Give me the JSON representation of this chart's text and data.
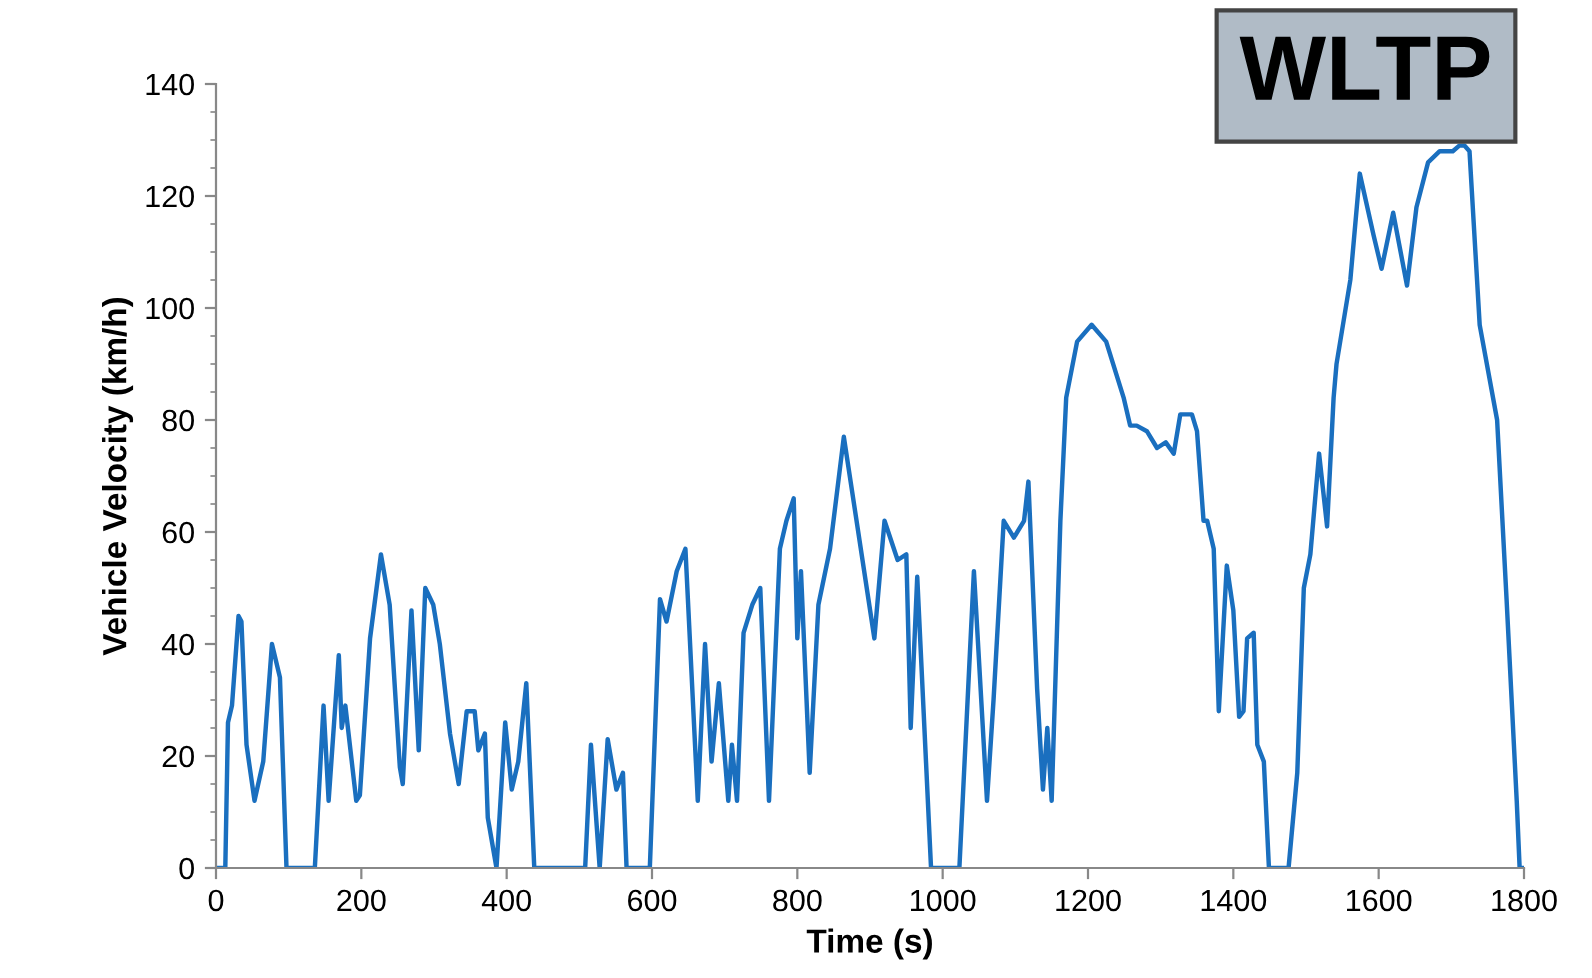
{
  "chart_data": {
    "type": "line",
    "xlabel": "Time (s)",
    "ylabel": "Vehicle Velocity (km/h)",
    "annotations": [
      "WLTP"
    ],
    "xlim": [
      0,
      1800
    ],
    "xticks": [
      0,
      200,
      400,
      600,
      800,
      1000,
      1200,
      1400,
      1600,
      1800
    ],
    "ylim": [
      0,
      140
    ],
    "yticks": [
      0,
      20,
      40,
      60,
      80,
      100,
      120,
      140
    ],
    "marker": "none",
    "line_style": "solid",
    "series": [
      {
        "color": "#1a6fbf",
        "x": [
          0,
          12.8,
          16.5,
          22,
          31,
          35,
          42,
          53,
          65,
          77,
          88,
          97,
          136,
          148,
          155,
          169,
          173,
          178,
          193,
          198,
          212,
          227,
          239,
          253,
          257,
          269,
          279,
          288,
          299,
          308,
          322,
          334,
          345,
          356,
          361,
          370,
          374,
          386,
          398,
          407,
          416,
          427,
          438,
          508,
          516,
          528,
          539,
          551,
          560,
          565,
          597,
          611,
          620,
          634,
          646,
          663,
          673,
          682,
          692,
          705,
          710,
          717,
          726,
          738,
          749,
          761,
          776,
          785,
          795,
          800,
          805,
          817,
          829,
          845,
          864,
          906,
          920,
          938,
          950,
          956,
          965,
          984,
          1023,
          1043,
          1061,
          1070,
          1084,
          1098,
          1112,
          1118,
          1130,
          1138,
          1144,
          1150,
          1162,
          1170,
          1185,
          1205,
          1225,
          1249,
          1258,
          1267,
          1281,
          1295,
          1307,
          1318,
          1327,
          1343,
          1350,
          1359,
          1364,
          1373,
          1380,
          1391,
          1400,
          1408,
          1414,
          1419,
          1428,
          1433,
          1442,
          1449,
          1476,
          1488,
          1497,
          1506,
          1518,
          1529,
          1538,
          1542,
          1561,
          1574,
          1593,
          1604,
          1620,
          1639,
          1652,
          1668,
          1684,
          1702,
          1711,
          1718,
          1725,
          1739,
          1763,
          1776,
          1790,
          1794,
          1800
        ],
        "values": [
          0,
          0,
          26,
          29,
          45,
          44,
          22,
          12,
          19,
          40,
          34,
          0,
          0,
          29,
          12,
          38,
          25,
          29,
          12,
          13,
          41,
          56,
          47,
          18,
          15,
          46,
          21,
          50,
          47,
          40,
          24,
          15,
          28,
          28,
          21,
          24,
          9,
          0,
          26,
          14,
          19,
          33,
          0,
          0,
          22,
          0,
          23,
          14,
          17,
          0,
          0,
          48,
          44,
          53,
          57,
          12,
          40,
          19,
          33,
          12,
          22,
          12,
          42,
          47,
          50,
          12,
          57,
          62,
          66,
          41,
          53,
          17,
          47,
          57,
          77,
          41,
          62,
          55,
          56,
          25,
          52,
          0,
          0,
          53,
          12,
          30,
          62,
          59,
          62,
          69,
          32,
          14,
          25,
          12,
          62,
          84,
          94,
          97,
          94,
          84,
          79,
          79,
          78,
          75,
          76,
          74,
          81,
          81,
          78,
          62,
          62,
          57,
          28,
          54,
          46,
          27,
          28,
          41,
          42,
          22,
          19,
          0,
          0,
          17,
          50,
          56,
          74,
          61,
          84,
          90,
          105,
          124,
          113,
          107,
          117,
          104,
          118,
          126,
          128,
          128,
          129,
          129,
          128,
          97,
          80,
          48,
          12,
          0,
          0
        ]
      }
    ]
  }
}
